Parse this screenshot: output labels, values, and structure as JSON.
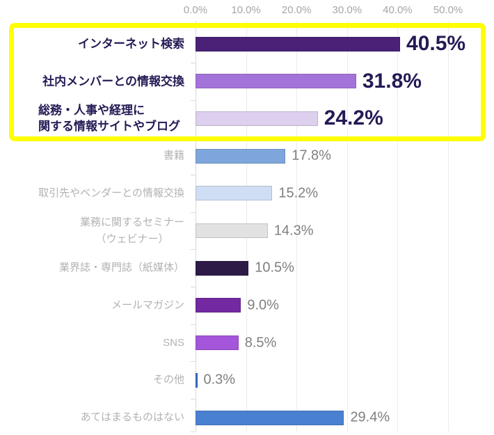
{
  "chart_data": {
    "type": "bar",
    "orientation": "horizontal",
    "title": "",
    "xlabel": "",
    "ylabel": "",
    "x_axis": {
      "ticks": [
        "0.0%",
        "10.0%",
        "20.0%",
        "30.0%",
        "40.0%",
        "50.0%"
      ],
      "tick_values": [
        0,
        10,
        20,
        30,
        40,
        50
      ],
      "min": 0,
      "max": 50,
      "unit": "%"
    },
    "grid": "vertical-on",
    "legend": "none",
    "rows": [
      {
        "label_lines": [
          "インターネット検索"
        ],
        "value": 40.5,
        "display": "40.5%",
        "color": "#4b2178",
        "highlighted": true,
        "align": "right"
      },
      {
        "label_lines": [
          "社内メンバーとの情報交換"
        ],
        "value": 31.8,
        "display": "31.8%",
        "color": "#a473d9",
        "highlighted": true,
        "align": "right"
      },
      {
        "label_lines": [
          "総務・人事や経理に",
          "関する情報サイトやブログ"
        ],
        "value": 24.2,
        "display": "24.2%",
        "color": "#ddd0ee",
        "highlighted": true,
        "align": "left"
      },
      {
        "label_lines": [
          "書籍"
        ],
        "value": 17.8,
        "display": "17.8%",
        "color": "#7ea6dc",
        "highlighted": false,
        "align": "right"
      },
      {
        "label_lines": [
          "取引先やベンダーとの情報交換"
        ],
        "value": 15.2,
        "display": "15.2%",
        "color": "#cfdef2",
        "highlighted": false,
        "align": "right"
      },
      {
        "label_lines": [
          "業務に関するセミナー",
          "（ウェビナー）"
        ],
        "value": 14.3,
        "display": "14.3%",
        "color": "#e2e2e2",
        "highlighted": false,
        "align": "center"
      },
      {
        "label_lines": [
          "業界誌・専門誌（紙媒体）"
        ],
        "value": 10.5,
        "display": "10.5%",
        "color": "#2e1a47",
        "highlighted": false,
        "align": "right"
      },
      {
        "label_lines": [
          "メールマガジン"
        ],
        "value": 9.0,
        "display": "9.0%",
        "color": "#7229a2",
        "highlighted": false,
        "align": "right"
      },
      {
        "label_lines": [
          "SNS"
        ],
        "value": 8.5,
        "display": "8.5%",
        "color": "#a455d9",
        "highlighted": false,
        "align": "right"
      },
      {
        "label_lines": [
          "その他"
        ],
        "value": 0.3,
        "display": "0.3%",
        "color": "#3a6bc6",
        "highlighted": false,
        "align": "right"
      },
      {
        "label_lines": [
          "あてはまるものはない"
        ],
        "value": 29.4,
        "display": "29.4%",
        "color": "#4a80d0",
        "highlighted": false,
        "align": "right"
      }
    ],
    "highlight_box": {
      "covers_rows": [
        0,
        1,
        2
      ],
      "color": "#ffff00"
    }
  },
  "colors": {
    "highlighted_text": "#231b55",
    "muted_label": "#b2b2b2",
    "muted_value": "#7f7f7f",
    "axis_text": "#a6a6a6",
    "gridline": "#ececec"
  }
}
